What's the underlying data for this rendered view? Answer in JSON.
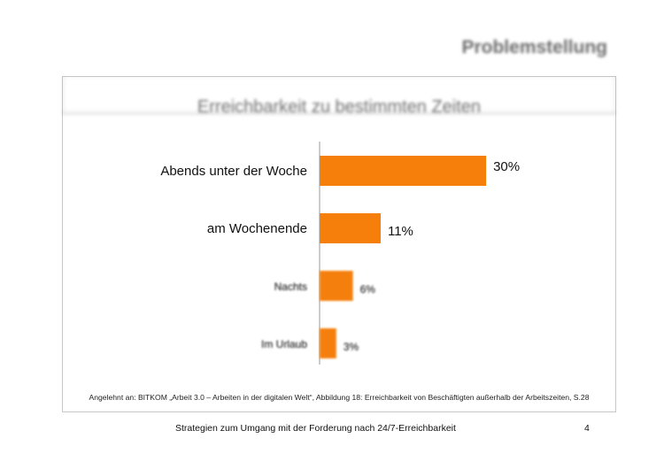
{
  "slide": {
    "title": "Problemstellung",
    "source_note": "Angelehnt an: BITKOM „Arbeit 3.0 – Arbeiten in der digitalen Welt“, Abbildung 18: Erreichbarkeit von Beschäftigten außerhalb der Arbeitszeiten, S.28",
    "footer": "Strategien zum Umgang mit der Forderung nach 24/7-Erreichbarkeit",
    "page_number": "4"
  },
  "chart_data": {
    "type": "bar",
    "orientation": "horizontal",
    "title": "Erreichbarkeit zu bestimmten Zeiten",
    "categories": [
      "Abends unter der Woche",
      "am Wochenende",
      "Nachts",
      "Im Urlaub"
    ],
    "values": [
      30,
      11,
      6,
      3
    ],
    "value_labels": [
      "30%",
      "11%",
      "6%",
      "3%"
    ],
    "xlim": [
      0,
      35
    ],
    "grid": false,
    "legend": "none",
    "bar_color": "#f57f0a"
  }
}
